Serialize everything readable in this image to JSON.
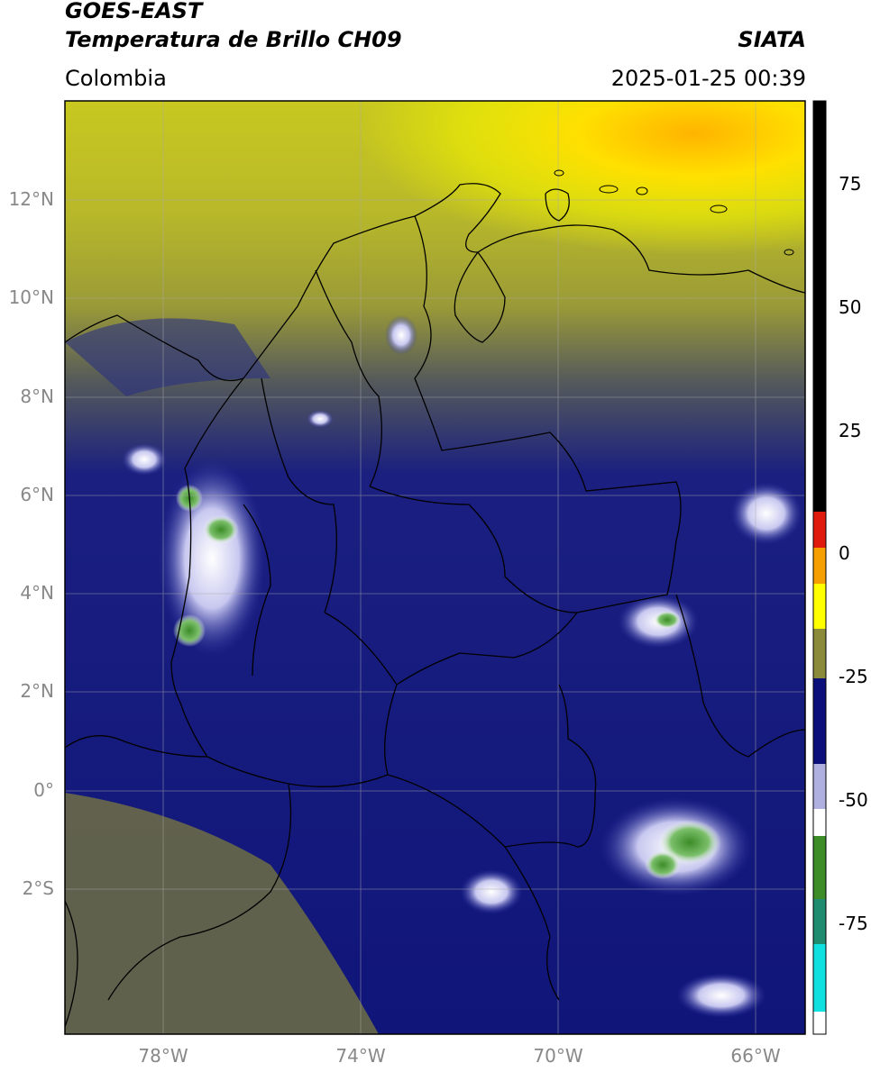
{
  "header": {
    "satellite": "GOES-EAST",
    "product": "Temperatura de Brillo CH09",
    "agency": "SIATA",
    "region": "Colombia",
    "datetime": "2025-01-25 00:39"
  },
  "axes": {
    "lat_ticks": [
      "12°N",
      "10°N",
      "8°N",
      "6°N",
      "4°N",
      "2°N",
      "0°",
      "2°S"
    ],
    "lon_ticks": [
      "78°W",
      "74°W",
      "70°W",
      "66°W"
    ]
  },
  "colorbar": {
    "ticks": [
      "75",
      "50",
      "25",
      "0",
      "-25",
      "-50",
      "-75"
    ],
    "tick_values": [
      75,
      50,
      25,
      0,
      -25,
      -50,
      -75
    ],
    "range": [
      -95,
      90
    ],
    "colors": {
      "warm_black": "#000000",
      "red": "#e01a0c",
      "orange": "#f5a000",
      "yellow": "#ffff00",
      "olive": "#8a8a3a",
      "navy": "#0b0f7a",
      "white": "#ffffff",
      "green": "#3c8c28",
      "cyan": "#10e0e0"
    }
  }
}
